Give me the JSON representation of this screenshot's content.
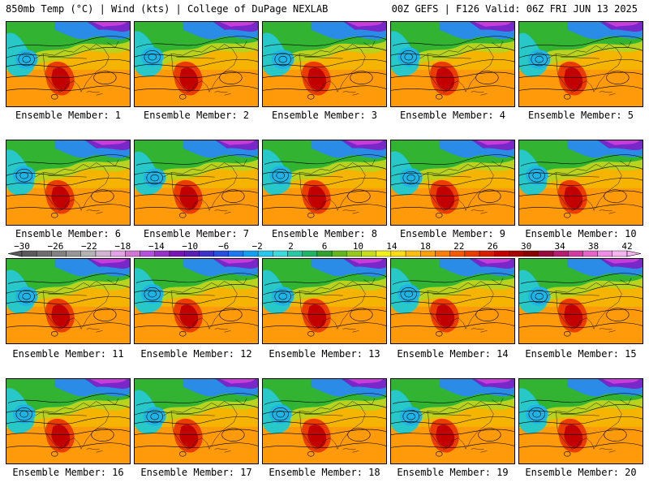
{
  "header": {
    "left": "850mb Temp (°C) | Wind (kts) | College of DuPage NEXLAB",
    "right": "00Z GEFS | F126 Valid: 06Z FRI JUN 13 2025"
  },
  "panels": [
    {
      "label": "Ensemble Member: 1"
    },
    {
      "label": "Ensemble Member: 2"
    },
    {
      "label": "Ensemble Member: 3"
    },
    {
      "label": "Ensemble Member: 4"
    },
    {
      "label": "Ensemble Member: 5"
    },
    {
      "label": "Ensemble Member: 6"
    },
    {
      "label": "Ensemble Member: 7"
    },
    {
      "label": "Ensemble Member: 8"
    },
    {
      "label": "Ensemble Member: 9"
    },
    {
      "label": "Ensemble Member: 10"
    },
    {
      "label": "Ensemble Member: 11"
    },
    {
      "label": "Ensemble Member: 12"
    },
    {
      "label": "Ensemble Member: 13"
    },
    {
      "label": "Ensemble Member: 14"
    },
    {
      "label": "Ensemble Member: 15"
    },
    {
      "label": "Ensemble Member: 16"
    },
    {
      "label": "Ensemble Member: 17"
    },
    {
      "label": "Ensemble Member: 18"
    },
    {
      "label": "Ensemble Member: 19"
    },
    {
      "label": "Ensemble Member: 20"
    }
  ],
  "colorbar": {
    "ticks": [
      "−30",
      "−26",
      "−22",
      "−18",
      "−14",
      "−10",
      "−6",
      "−2",
      "2",
      "6",
      "10",
      "14",
      "18",
      "22",
      "26",
      "30",
      "34",
      "38",
      "42"
    ],
    "colors": [
      "#5a5a5a",
      "#6e6e6e",
      "#828282",
      "#979797",
      "#b4b4b4",
      "#d2b4d2",
      "#e6a0e6",
      "#d278d2",
      "#b450dc",
      "#9632c8",
      "#7814b4",
      "#5a1eb4",
      "#3c32c8",
      "#2850dc",
      "#1e78f0",
      "#14a0f0",
      "#28c8f0",
      "#3cdcdc",
      "#28c8a0",
      "#1eb464",
      "#32a02d",
      "#64b41e",
      "#96c81e",
      "#c8dc1e",
      "#f0f01e",
      "#ffdc14",
      "#ffbe0f",
      "#ffa00a",
      "#ff7d05",
      "#f55a00",
      "#eb3c00",
      "#d71e00",
      "#c30000",
      "#a50000",
      "#870000",
      "#960a3c",
      "#b41e6e",
      "#d23ca0",
      "#e664c8",
      "#f08ce6",
      "#f5b4f0"
    ]
  }
}
